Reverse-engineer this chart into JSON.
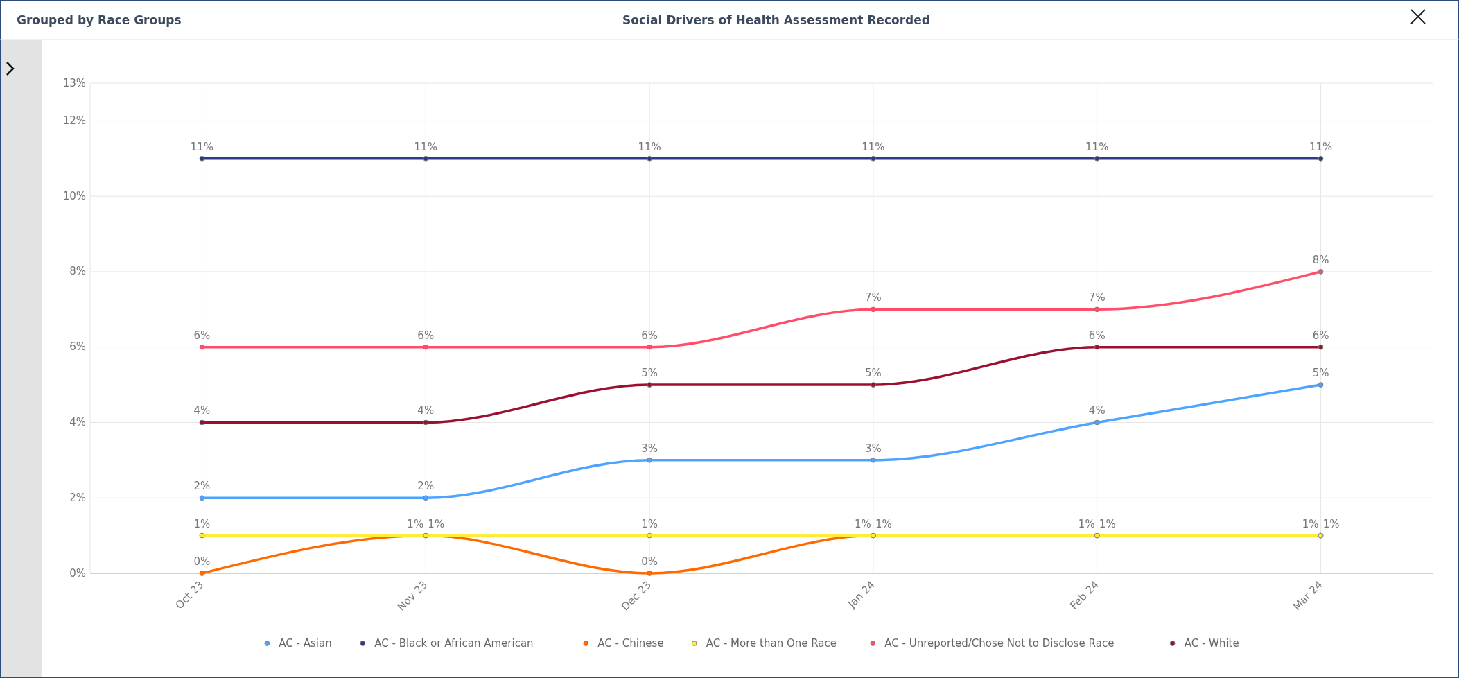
{
  "chart_data": {
    "type": "line",
    "title": "Social Drivers of Health Assessment Recorded",
    "subtitle": "Grouped by Race Groups",
    "categories": [
      "Oct 23",
      "Nov 23",
      "Dec 23",
      "Jan 24",
      "Feb 24",
      "Mar 24"
    ],
    "ylim": [
      0,
      13
    ],
    "yticks": [
      {
        "value": 0,
        "label": "0%"
      },
      {
        "value": 2,
        "label": "2%"
      },
      {
        "value": 4,
        "label": "4%"
      },
      {
        "value": 6,
        "label": "6%"
      },
      {
        "value": 8,
        "label": "8%"
      },
      {
        "value": 10,
        "label": "10%"
      },
      {
        "value": 12,
        "label": "12%"
      },
      {
        "value": 13,
        "label": "13%"
      }
    ],
    "grid": true,
    "legend": "bottom",
    "marker": "circle",
    "line_style": "solid",
    "series": [
      {
        "name": "AC - Asian",
        "color": "#4da3ff",
        "values": [
          2,
          2,
          3,
          3,
          4,
          5
        ],
        "value_labels": [
          "2%",
          "2%",
          "3%",
          "3%",
          "4%",
          "5%"
        ]
      },
      {
        "name": "AC - Black or African American",
        "color": "#2e3a87",
        "values": [
          11,
          11,
          11,
          11,
          11,
          11
        ],
        "value_labels": [
          "11%",
          "11%",
          "11%",
          "11%",
          "11%",
          "11%"
        ]
      },
      {
        "name": "AC - Chinese",
        "color": "#ff6a00",
        "values": [
          0,
          1,
          0,
          1,
          1,
          1
        ],
        "value_labels": [
          "0%",
          "1%",
          "0%",
          "1%",
          "1%",
          "1%"
        ]
      },
      {
        "name": "AC - More than One Race",
        "color": "#ffeb3b",
        "values": [
          1,
          1,
          1,
          1,
          1,
          1
        ],
        "value_labels": [
          "1%",
          "1%",
          "1%",
          "1%",
          "1%",
          "1%"
        ]
      },
      {
        "name": "AC - Unreported/Chose Not to Disclose Race",
        "color": "#ff4d6a",
        "values": [
          6,
          6,
          6,
          7,
          7,
          8
        ],
        "value_labels": [
          "6%",
          "6%",
          "6%",
          "7%",
          "7%",
          "8%"
        ]
      },
      {
        "name": "AC - White",
        "color": "#9b1030",
        "values": [
          4,
          4,
          5,
          5,
          6,
          6
        ],
        "value_labels": [
          "4%",
          "4%",
          "5%",
          "5%",
          "6%",
          "6%"
        ]
      }
    ]
  }
}
